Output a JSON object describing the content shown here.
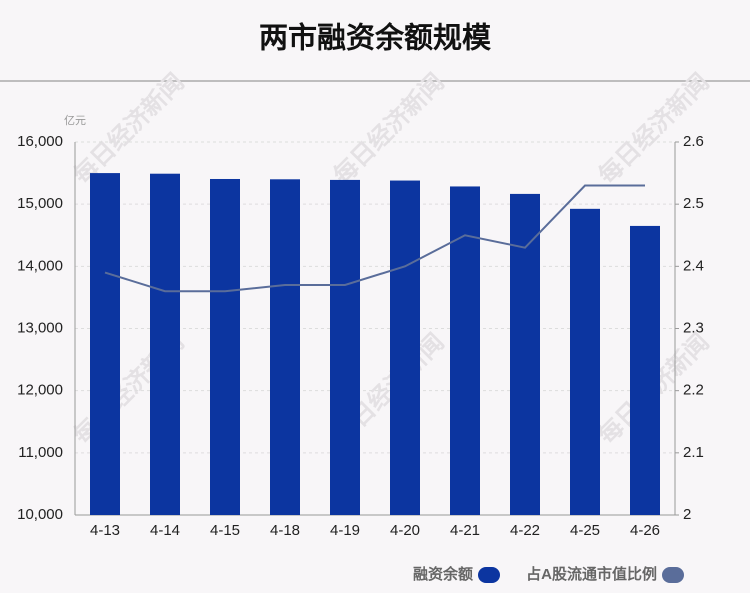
{
  "chart_data": {
    "type": "bar_line",
    "title": "两市融资余额规模",
    "y_unit": "亿元",
    "watermark": "每日经济新闻",
    "categories": [
      "4-13",
      "4-14",
      "4-15",
      "4-18",
      "4-19",
      "4-20",
      "4-21",
      "4-22",
      "4-25",
      "4-26"
    ],
    "series": [
      {
        "name": "融资余额",
        "color": "#0c35a0",
        "type": "bar",
        "values": [
          15500,
          15490,
          15405,
          15400,
          15390,
          15380,
          15285,
          15165,
          14925,
          14650
        ]
      },
      {
        "name": "占A股流通市值比例",
        "color": "#5a6d9a",
        "type": "line",
        "axis": "y2",
        "values": [
          2.39,
          2.36,
          2.36,
          2.37,
          2.37,
          2.4,
          2.45,
          2.43,
          2.53,
          2.53
        ]
      }
    ],
    "ylim": [
      10000,
      16000
    ],
    "yticks": [
      {
        "value": 10000,
        "label": "10,000"
      },
      {
        "value": 11000,
        "label": "11,000"
      },
      {
        "value": 12000,
        "label": "12,000"
      },
      {
        "value": 13000,
        "label": "13,000"
      },
      {
        "value": 14000,
        "label": "14,000"
      },
      {
        "value": 15000,
        "label": "15,000"
      },
      {
        "value": 16000,
        "label": "16,000"
      }
    ],
    "y2lim": [
      2,
      2.6
    ],
    "y2ticks": [
      2,
      2.1,
      2.2,
      2.3,
      2.4,
      2.5,
      2.6
    ],
    "grid": true
  }
}
